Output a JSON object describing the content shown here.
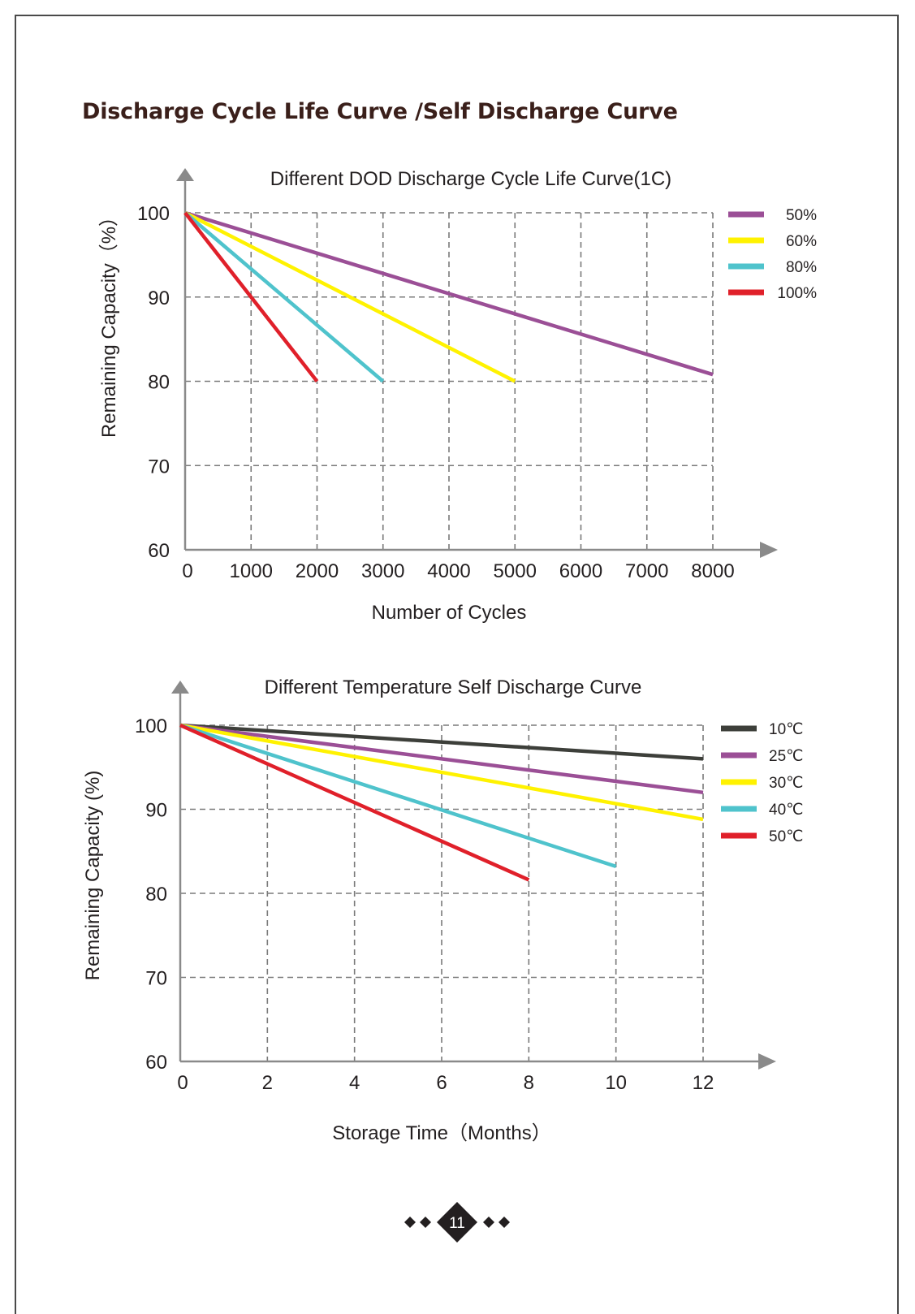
{
  "page": {
    "heading": "Discharge Cycle Life Curve /Self Discharge Curve",
    "page_number": "11"
  },
  "chart_data": [
    {
      "type": "line",
      "title": "Different DOD Discharge Cycle Life Curve(1C)",
      "xlabel": "Number of Cycles",
      "ylabel": "Remaining Capacity（%）",
      "xlim": [
        0,
        8000
      ],
      "ylim": [
        60,
        100
      ],
      "x_ticks": [
        "0",
        "1000",
        "2000",
        "3000",
        "4000",
        "5000",
        "6000",
        "7000",
        "8000"
      ],
      "x_tick_values": [
        0,
        1000,
        2000,
        3000,
        4000,
        5000,
        6000,
        7000,
        8000
      ],
      "y_ticks": [
        "60",
        "70",
        "80",
        "90",
        "100"
      ],
      "y_tick_values": [
        60,
        70,
        80,
        90,
        100
      ],
      "grid": true,
      "legend_position": "top-right",
      "series": [
        {
          "name": "50%",
          "color": "#9b4f96",
          "x": [
            0,
            8000
          ],
          "values": [
            100,
            80.8
          ]
        },
        {
          "name": "60%",
          "color": "#fff200",
          "x": [
            0,
            5000
          ],
          "values": [
            100,
            80
          ]
        },
        {
          "name": "80%",
          "color": "#4fc3cc",
          "x": [
            0,
            3000
          ],
          "values": [
            100,
            80
          ]
        },
        {
          "name": "100%",
          "color": "#e0202a",
          "x": [
            0,
            2000
          ],
          "values": [
            100,
            80
          ]
        }
      ]
    },
    {
      "type": "line",
      "title": "Different Temperature Self Discharge Curve",
      "xlabel": "Storage Time（Months）",
      "ylabel": "Remaining Capacity (%)",
      "xlim": [
        0,
        12
      ],
      "ylim": [
        60,
        100
      ],
      "x_ticks": [
        "0",
        "2",
        "4",
        "6",
        "8",
        "10",
        "12"
      ],
      "x_tick_values": [
        0,
        2,
        4,
        6,
        8,
        10,
        12
      ],
      "y_ticks": [
        "60",
        "70",
        "80",
        "90",
        "100"
      ],
      "y_tick_values": [
        60,
        70,
        80,
        90,
        100
      ],
      "grid": true,
      "legend_position": "top-right",
      "series": [
        {
          "name": "10℃",
          "color": "#3d3f3a",
          "x": [
            0,
            12
          ],
          "values": [
            100,
            96
          ]
        },
        {
          "name": "25℃",
          "color": "#9b4f96",
          "x": [
            0,
            12
          ],
          "values": [
            100,
            92
          ]
        },
        {
          "name": "30℃",
          "color": "#fff200",
          "x": [
            0,
            12
          ],
          "values": [
            100,
            88.8
          ]
        },
        {
          "name": "40℃",
          "color": "#4fc3cc",
          "x": [
            0,
            10
          ],
          "values": [
            100,
            83.2
          ]
        },
        {
          "name": "50℃",
          "color": "#e0202a",
          "x": [
            0,
            8
          ],
          "values": [
            100,
            81.6
          ]
        }
      ]
    }
  ]
}
